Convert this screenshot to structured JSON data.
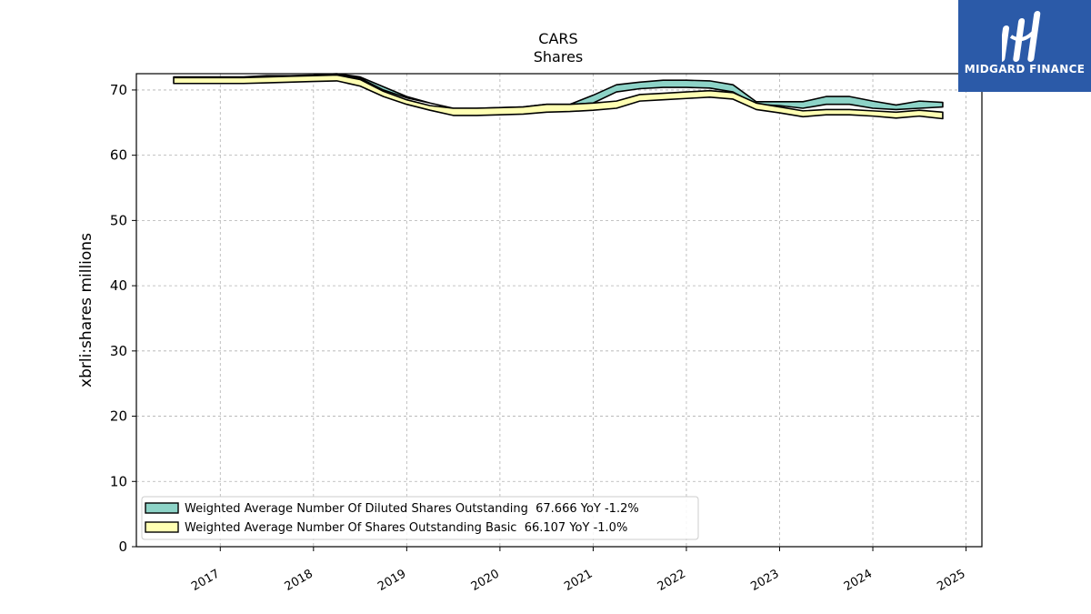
{
  "chart_data": {
    "type": "area",
    "title": "CARS",
    "subtitle": "Shares",
    "ylabel": "xbrli:shares millions",
    "xlabel": "",
    "ylim": [
      0,
      72.5
    ],
    "xlim": [
      2016.1,
      2025.17
    ],
    "y_ticks": [
      0,
      10,
      20,
      30,
      40,
      50,
      60,
      70
    ],
    "x_ticks": [
      2017,
      2018,
      2019,
      2020,
      2021,
      2022,
      2023,
      2024,
      2025
    ],
    "grid": true,
    "legend_position": "lower-left",
    "x": [
      2016.5,
      2016.75,
      2017.0,
      2017.25,
      2017.5,
      2017.75,
      2018.0,
      2018.25,
      2018.5,
      2018.75,
      2019.0,
      2019.25,
      2019.5,
      2019.75,
      2020.0,
      2020.25,
      2020.5,
      2020.75,
      2021.0,
      2021.25,
      2021.5,
      2021.75,
      2022.0,
      2022.25,
      2022.5,
      2022.75,
      2023.0,
      2023.25,
      2023.5,
      2023.75,
      2024.0,
      2024.25,
      2024.5,
      2024.75
    ],
    "series": [
      {
        "name": "Weighted Average Number Of Diluted Shares Outstanding",
        "legend_label": "Weighted Average Number Of Diluted Shares Outstanding  67.666 YoY -1.2%",
        "color": "#8dd3c7",
        "upper": [
          72.0,
          72.0,
          72.0,
          72.0,
          72.2,
          72.2,
          72.3,
          72.5,
          72.0,
          70.5,
          69.0,
          68.0,
          67.2,
          67.2,
          67.3,
          67.4,
          67.8,
          67.8,
          69.2,
          70.8,
          71.2,
          71.5,
          71.5,
          71.4,
          70.8,
          68.2,
          68.2,
          68.2,
          69.0,
          69.0,
          68.3,
          67.7,
          68.3,
          68.1
        ],
        "lower": [
          72.0,
          72.0,
          72.0,
          72.0,
          72.2,
          72.2,
          72.3,
          72.5,
          71.8,
          70.0,
          68.8,
          68.0,
          67.2,
          67.2,
          67.3,
          67.4,
          67.8,
          67.8,
          68.0,
          69.7,
          70.2,
          70.4,
          70.4,
          70.3,
          69.7,
          67.8,
          67.6,
          67.2,
          67.8,
          67.8,
          67.2,
          67.0,
          67.2,
          67.4
        ]
      },
      {
        "name": "Weighted Average Number Of Shares Outstanding Basic",
        "legend_label": "Weighted Average Number Of Shares Outstanding Basic  66.107 YoY -1.0%",
        "color": "#ffffb3",
        "upper": [
          71.9,
          71.9,
          71.9,
          71.9,
          72.0,
          72.1,
          72.2,
          72.3,
          71.6,
          69.8,
          68.5,
          67.6,
          67.2,
          67.2,
          67.3,
          67.4,
          67.8,
          67.8,
          68.0,
          68.3,
          69.3,
          69.5,
          69.7,
          69.9,
          69.6,
          68.0,
          67.4,
          66.8,
          67.0,
          67.0,
          66.8,
          66.6,
          66.9,
          66.6
        ],
        "lower": [
          71.0,
          71.0,
          71.0,
          71.0,
          71.1,
          71.2,
          71.3,
          71.4,
          70.6,
          69.0,
          67.8,
          66.9,
          66.1,
          66.1,
          66.2,
          66.3,
          66.6,
          66.7,
          66.9,
          67.2,
          68.3,
          68.5,
          68.7,
          68.9,
          68.6,
          67.0,
          66.5,
          65.9,
          66.2,
          66.2,
          66.0,
          65.7,
          66.0,
          65.6
        ]
      }
    ]
  },
  "brand": {
    "name": "MIDGARD FINANCE",
    "color": "#2b5aa8"
  }
}
